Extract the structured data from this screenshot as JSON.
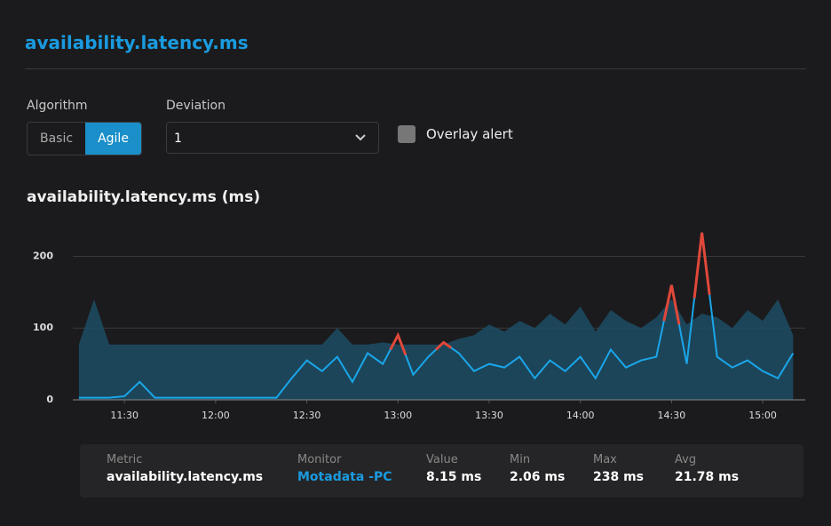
{
  "header": {
    "title": "availability.latency.ms"
  },
  "controls": {
    "algorithm_label": "Algorithm",
    "algorithm_options": [
      "Basic",
      "Agile"
    ],
    "deviation_label": "Deviation",
    "deviation_value": "1",
    "overlay_label": "Overlay alert"
  },
  "chart_data": {
    "type": "area-line",
    "title": "availability.latency.ms (ms)",
    "x": [
      675,
      680,
      685,
      690,
      695,
      700,
      705,
      710,
      715,
      720,
      725,
      730,
      735,
      740,
      745,
      750,
      755,
      760,
      765,
      770,
      775,
      780,
      785,
      790,
      795,
      800,
      805,
      810,
      815,
      820,
      825,
      830,
      835,
      840,
      845,
      850,
      855,
      860,
      865,
      870,
      875,
      880,
      885,
      890,
      895,
      900,
      905,
      910
    ],
    "xlim": [
      673,
      914
    ],
    "xticks": [
      {
        "value": 690,
        "label": "11:30"
      },
      {
        "value": 720,
        "label": "12:00"
      },
      {
        "value": 750,
        "label": "12:30"
      },
      {
        "value": 780,
        "label": "13:00"
      },
      {
        "value": 810,
        "label": "13:30"
      },
      {
        "value": 840,
        "label": "14:00"
      },
      {
        "value": 870,
        "label": "14:30"
      },
      {
        "value": 900,
        "label": "15:00"
      }
    ],
    "ylim": [
      0,
      260
    ],
    "yticks": [
      0,
      100,
      200
    ],
    "grid": true,
    "anomaly_color": "#e0483a",
    "series": [
      {
        "color": "#1d4a60",
        "values": [
          77,
          140,
          77,
          77,
          77,
          77,
          77,
          77,
          77,
          77,
          77,
          77,
          77,
          77,
          77,
          77,
          77,
          100,
          77,
          77,
          80,
          77,
          77,
          77,
          77,
          85,
          90,
          105,
          95,
          110,
          100,
          120,
          105,
          130,
          95,
          125,
          110,
          100,
          115,
          140,
          105,
          120,
          115,
          100,
          125,
          110,
          140,
          90
        ]
      },
      {
        "color": "#1aa6ea",
        "values": [
          3,
          3,
          3,
          5,
          25,
          3,
          3,
          3,
          3,
          3,
          3,
          3,
          3,
          3,
          30,
          55,
          40,
          60,
          25,
          65,
          50,
          90,
          35,
          60,
          80,
          65,
          40,
          50,
          45,
          60,
          30,
          55,
          40,
          60,
          30,
          70,
          45,
          55,
          60,
          160,
          50,
          233,
          60,
          45,
          55,
          40,
          30,
          65
        ]
      }
    ]
  },
  "summary": {
    "columns": [
      {
        "label": "Metric",
        "value": "availability.latency.ms"
      },
      {
        "label": "Monitor",
        "value": "Motadata -PC"
      },
      {
        "label": "Value",
        "value": "8.15 ms"
      },
      {
        "label": "Min",
        "value": "2.06 ms"
      },
      {
        "label": "Max",
        "value": "238 ms"
      },
      {
        "label": "Avg",
        "value": "21.78 ms"
      }
    ]
  }
}
